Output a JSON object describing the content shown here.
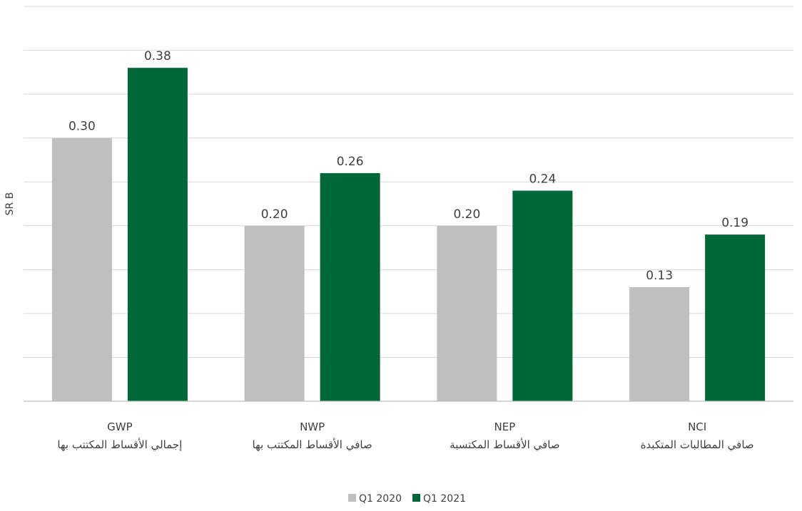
{
  "chart_data": {
    "type": "bar",
    "title": "",
    "ylabel": "SR B",
    "xlabel": "",
    "ylim": [
      0,
      0.45
    ],
    "grid": true,
    "legend_position": "bottom-center",
    "categories": [
      {
        "code": "GWP",
        "arabic": "إجمالي الأقساط المكتتب بها"
      },
      {
        "code": "NWP",
        "arabic": "صافي الأقساط المكتتب بها"
      },
      {
        "code": "NEP",
        "arabic": "صافي الأقساط المكتسبة"
      },
      {
        "code": "NCI",
        "arabic": "صافي المطالبات المتكبدة"
      }
    ],
    "series": [
      {
        "name": "Q1 2020",
        "color": "#bfbfbf",
        "values": [
          0.3,
          0.2,
          0.2,
          0.13
        ],
        "labels": [
          "0.30",
          "0.20",
          "0.20",
          "0.13"
        ]
      },
      {
        "name": "Q1 2021",
        "color": "#006838",
        "values": [
          0.38,
          0.26,
          0.24,
          0.19
        ],
        "labels": [
          "0.38",
          "0.26",
          "0.24",
          "0.19"
        ]
      }
    ]
  }
}
